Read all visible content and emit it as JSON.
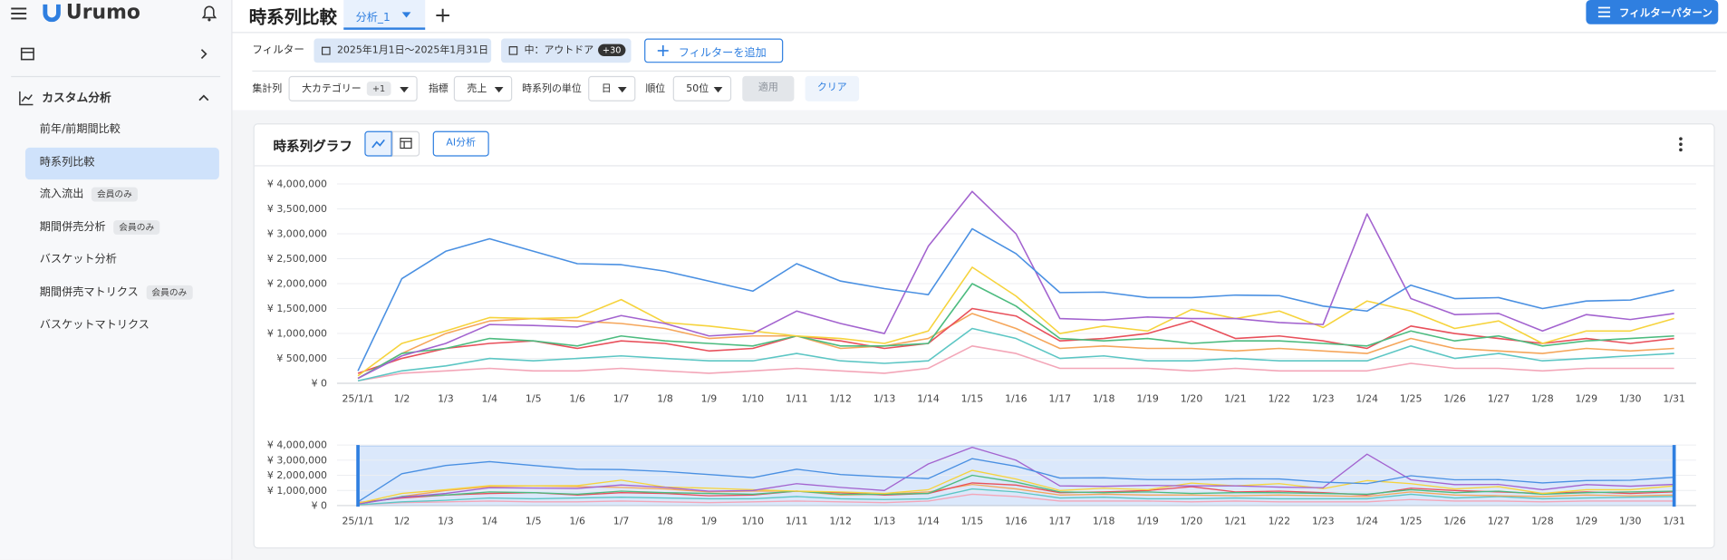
{
  "sidebar": {
    "logo": "Urumo",
    "section": "カスタム分析",
    "items": [
      {
        "label": "前年/前期間比較"
      },
      {
        "label": "時系列比較",
        "active": true
      },
      {
        "label": "流入流出",
        "badge": "会員のみ"
      },
      {
        "label": "期間併売分析",
        "badge": "会員のみ"
      },
      {
        "label": "バスケット分析"
      },
      {
        "label": "期間併売マトリクス",
        "badge": "会員のみ"
      },
      {
        "label": "バスケットマトリクス"
      }
    ]
  },
  "header": {
    "title": "時系列比較",
    "tab": "分析_1",
    "pattern_button": "フィルターパターン"
  },
  "filters": {
    "label": "フィルター",
    "date": "2025年1月1日〜2025年1月31日",
    "category": "中：アウトドア",
    "category_badge": "+30",
    "add_button": "フィルターを追加"
  },
  "settings": {
    "aggregate_label": "集計列",
    "aggregate": "大カテゴリー",
    "aggregate_badge": "+1",
    "metric_label": "指標",
    "metric": "売上",
    "unit_label": "時系列の単位",
    "unit": "日",
    "rank_label": "順位",
    "rank": "50位",
    "apply": "適用",
    "clear": "クリア"
  },
  "card": {
    "title": "時系列グラフ",
    "ai_button": "AI分析"
  },
  "chart_data": {
    "type": "line",
    "categories": [
      "25/1/1",
      "1/2",
      "1/3",
      "1/4",
      "1/5",
      "1/6",
      "1/7",
      "1/8",
      "1/9",
      "1/10",
      "1/11",
      "1/12",
      "1/13",
      "1/14",
      "1/15",
      "1/16",
      "1/17",
      "1/18",
      "1/19",
      "1/20",
      "1/21",
      "1/22",
      "1/23",
      "1/24",
      "1/25",
      "1/26",
      "1/27",
      "1/28",
      "1/29",
      "1/30",
      "1/31"
    ],
    "series": [
      {
        "color": "#f3a6b8",
        "values": [
          50000,
          200000,
          250000,
          300000,
          250000,
          250000,
          300000,
          250000,
          200000,
          250000,
          300000,
          250000,
          200000,
          300000,
          750000,
          600000,
          300000,
          300000,
          300000,
          250000,
          300000,
          250000,
          250000,
          250000,
          400000,
          300000,
          300000,
          250000,
          300000,
          300000,
          300000
        ]
      },
      {
        "color": "#5cc6c4",
        "values": [
          50000,
          250000,
          350000,
          500000,
          450000,
          500000,
          550000,
          500000,
          450000,
          450000,
          600000,
          450000,
          400000,
          450000,
          1100000,
          900000,
          500000,
          550000,
          450000,
          450000,
          500000,
          450000,
          450000,
          450000,
          750000,
          500000,
          600000,
          450000,
          500000,
          550000,
          600000
        ]
      },
      {
        "color": "#f5a65b",
        "values": [
          100000,
          600000,
          1000000,
          1250000,
          1300000,
          1250000,
          1200000,
          1100000,
          900000,
          950000,
          950000,
          700000,
          750000,
          900000,
          1400000,
          1100000,
          700000,
          750000,
          700000,
          700000,
          650000,
          700000,
          650000,
          600000,
          900000,
          700000,
          650000,
          600000,
          700000,
          650000,
          700000
        ]
      },
      {
        "color": "#e8505b",
        "values": [
          200000,
          500000,
          700000,
          800000,
          850000,
          700000,
          850000,
          800000,
          650000,
          700000,
          950000,
          850000,
          700000,
          800000,
          1500000,
          1350000,
          850000,
          900000,
          1000000,
          1250000,
          900000,
          950000,
          850000,
          700000,
          1150000,
          1000000,
          900000,
          800000,
          900000,
          800000,
          900000
        ]
      },
      {
        "color": "#4cbb7f",
        "values": [
          100000,
          600000,
          700000,
          900000,
          850000,
          750000,
          950000,
          850000,
          800000,
          750000,
          950000,
          750000,
          750000,
          800000,
          2000000,
          1550000,
          900000,
          850000,
          900000,
          800000,
          850000,
          850000,
          800000,
          750000,
          1050000,
          850000,
          950000,
          750000,
          850000,
          900000,
          950000
        ]
      },
      {
        "color": "#f6d33c",
        "values": [
          150000,
          800000,
          1050000,
          1320000,
          1300000,
          1320000,
          1680000,
          1220000,
          1150000,
          1050000,
          950000,
          900000,
          800000,
          1050000,
          2330000,
          1750000,
          1000000,
          1150000,
          1050000,
          1480000,
          1300000,
          1450000,
          1120000,
          1650000,
          1450000,
          1100000,
          1250000,
          800000,
          1050000,
          1050000,
          1300000
        ]
      },
      {
        "color": "#a363cf",
        "values": [
          100000,
          550000,
          800000,
          1180000,
          1160000,
          1130000,
          1360000,
          1200000,
          950000,
          1000000,
          1450000,
          1200000,
          1000000,
          2750000,
          3850000,
          3000000,
          1300000,
          1270000,
          1330000,
          1300000,
          1300000,
          1220000,
          1180000,
          3400000,
          1700000,
          1380000,
          1400000,
          1050000,
          1380000,
          1280000,
          1400000
        ]
      },
      {
        "color": "#4a90e2",
        "values": [
          250000,
          2100000,
          2650000,
          2900000,
          2650000,
          2400000,
          2380000,
          2250000,
          2050000,
          1850000,
          2400000,
          2050000,
          1900000,
          1780000,
          3100000,
          2600000,
          1820000,
          1830000,
          1720000,
          1720000,
          1770000,
          1760000,
          1550000,
          1450000,
          1970000,
          1700000,
          1720000,
          1500000,
          1650000,
          1670000,
          1870000
        ]
      }
    ],
    "ylim": [
      0,
      4000000
    ],
    "yticks": [
      {
        "value": 0,
        "label": "¥ 0"
      },
      {
        "value": 500000,
        "label": "¥ 500,000"
      },
      {
        "value": 1000000,
        "label": "¥ 1,000,000"
      },
      {
        "value": 1500000,
        "label": "¥ 1,500,000"
      },
      {
        "value": 2000000,
        "label": "¥ 2,000,000"
      },
      {
        "value": 2500000,
        "label": "¥ 2,500,000"
      },
      {
        "value": 3000000,
        "label": "¥ 3,000,000"
      },
      {
        "value": 3500000,
        "label": "¥ 3,500,000"
      },
      {
        "value": 4000000,
        "label": "¥ 4,000,000"
      }
    ],
    "grid": true,
    "navigator_ylim": [
      0,
      4000000
    ],
    "navigator_yticks": [
      {
        "value": 0,
        "label": "¥ 0"
      },
      {
        "value": 1000000,
        "label": "¥ 1,000,000"
      },
      {
        "value": 2000000,
        "label": "¥ 2,000,000"
      },
      {
        "value": 3000000,
        "label": "¥ 3,000,000"
      },
      {
        "value": 4000000,
        "label": "¥ 4,000,000"
      }
    ]
  }
}
